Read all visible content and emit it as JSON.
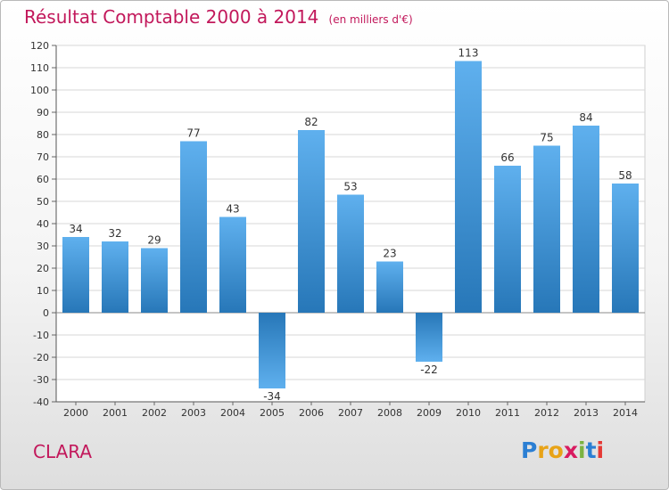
{
  "title": "Résultat Comptable 2000 à 2014",
  "subtitle": "(en milliers d'€)",
  "commune": "CLARA",
  "logo": {
    "letters": [
      "P",
      "r",
      "o",
      "x",
      "i",
      "t",
      "i"
    ],
    "colors": [
      "#2b7fd3",
      "#e8a317",
      "#e8a317",
      "#d81b60",
      "#7cb342",
      "#2b7fd3",
      "#e53935"
    ]
  },
  "colors": {
    "title": "#c2185b",
    "bar_top": "#5fb0ee",
    "bar_bottom": "#2777b8",
    "grid": "#d7d7d7"
  },
  "chart_data": {
    "type": "bar",
    "categories": [
      "2000",
      "2001",
      "2002",
      "2003",
      "2004",
      "2005",
      "2006",
      "2007",
      "2008",
      "2009",
      "2010",
      "2011",
      "2012",
      "2013",
      "2014"
    ],
    "values": [
      34,
      32,
      29,
      77,
      43,
      -34,
      82,
      53,
      23,
      -22,
      113,
      66,
      75,
      84,
      58
    ],
    "ylim": [
      -40,
      120
    ],
    "yticks": [
      -40,
      -30,
      -20,
      -10,
      0,
      10,
      20,
      30,
      40,
      50,
      60,
      70,
      80,
      90,
      100,
      110,
      120
    ],
    "grid": true,
    "xlabel": "",
    "ylabel": ""
  }
}
